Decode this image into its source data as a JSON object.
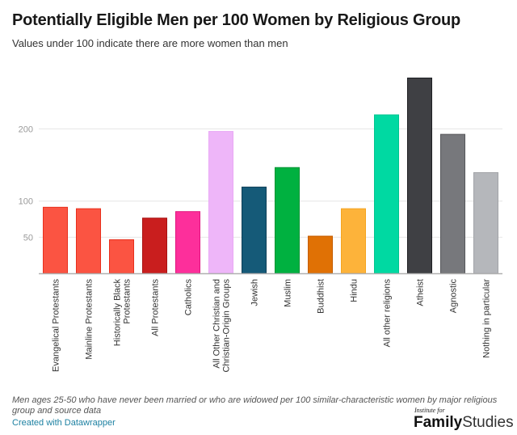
{
  "header": {
    "title": "Potentially Eligible Men per 100 Women by Religious Group",
    "subtitle": "Values under 100 indicate there are more women than men"
  },
  "footer": {
    "notes": "Men ages 25-50 who have never been married or who are widowed per 100 similar-characteristic women by major religious group and source data",
    "credit": "Created with Datawrapper",
    "logo_small": "Institute for",
    "logo_bold": "Family",
    "logo_light": "Studies"
  },
  "chart_data": {
    "type": "bar",
    "title": "Potentially Eligible Men per 100 Women by Religious Group",
    "subtitle": "Values under 100 indicate there are more women than men",
    "xlabel": "",
    "ylabel": "",
    "ylim": [
      0,
      275
    ],
    "yticks": [
      50,
      100,
      200
    ],
    "grid": true,
    "categories": [
      "Evangelical Protestants",
      "Mainline Protestants",
      "Historically Black Protestants",
      "All Protestants",
      "Catholics",
      "All Other Christian and Christian-Origin Groups",
      "Jewish",
      "Muslim",
      "Buddhist",
      "Hindu",
      "All other religions",
      "Atheist",
      "Agnostic",
      "Nothing in particular"
    ],
    "category_label_lines": [
      [
        "Evangelical Protestants"
      ],
      [
        "Mainline Protestants"
      ],
      [
        "Historically Black",
        "Protestants"
      ],
      [
        "All Protestants"
      ],
      [
        "Catholics"
      ],
      [
        "All Other Christian and",
        "Christian-Origin Groups"
      ],
      [
        "Jewish"
      ],
      [
        "Muslim"
      ],
      [
        "Buddhist"
      ],
      [
        "Hindu"
      ],
      [
        "All other religions"
      ],
      [
        "Atheist"
      ],
      [
        "Agnostic"
      ],
      [
        "Nothing in particular"
      ]
    ],
    "values": [
      92,
      90,
      47,
      77,
      86,
      197,
      120,
      147,
      52,
      90,
      220,
      271,
      193,
      140
    ],
    "colors": [
      "#fb5442",
      "#fb5442",
      "#fb5442",
      "#c91e1e",
      "#fd2f9b",
      "#eeb6f9",
      "#155a78",
      "#00b140",
      "#e07105",
      "#fdb33a",
      "#00d9a2",
      "#3f4044",
      "#77787c",
      "#b5b7bb"
    ],
    "border_colors": [
      "#e8301d",
      "#e8301d",
      "#e8301d",
      "#a81212",
      "#e0147d",
      "#e9a8f5",
      "#0d3e57",
      "#009232",
      "#c55d00",
      "#f5a420",
      "#00c48f",
      "#1d1e22",
      "#56575b",
      "#a2a4a8"
    ]
  }
}
